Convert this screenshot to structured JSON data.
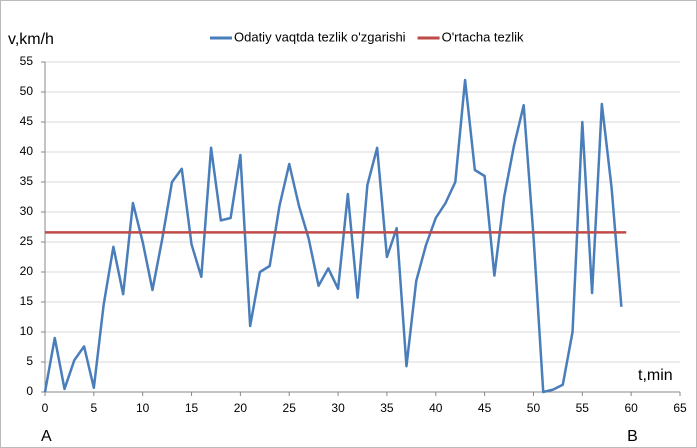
{
  "chart_data": {
    "type": "line",
    "y_label": "v,km/h",
    "x_label": "t,min",
    "x": [
      0,
      1,
      2,
      3,
      4,
      5,
      6,
      7,
      8,
      9,
      10,
      11,
      12,
      13,
      14,
      15,
      16,
      17,
      18,
      19,
      20,
      21,
      22,
      23,
      24,
      25,
      26,
      27,
      28,
      29,
      30,
      31,
      32,
      33,
      34,
      35,
      36,
      37,
      38,
      39,
      40,
      41,
      42,
      43,
      44,
      45,
      46,
      47,
      48,
      49,
      50,
      51,
      52,
      53,
      54,
      55,
      56,
      57,
      58,
      59
    ],
    "series": [
      {
        "name": "Odatiy vaqtda tezlik o'zgarishi",
        "color": "#4a7ebb",
        "values": [
          0,
          9,
          0.5,
          5.3,
          7.6,
          0.7,
          14.5,
          24.2,
          16.3,
          31.5,
          25,
          17,
          25.5,
          35,
          37.2,
          24.6,
          19.2,
          40.7,
          28.6,
          29,
          39.5,
          11,
          20,
          21,
          31,
          38,
          31,
          25.5,
          17.7,
          20.6,
          17.2,
          33,
          15.7,
          34.5,
          40.7,
          22.5,
          27.3,
          4.3,
          18.5,
          24.5,
          29,
          31.5,
          35,
          52,
          37,
          36,
          19.4,
          32.5,
          41,
          47.8,
          26,
          0,
          0.4,
          1.2,
          10,
          45,
          16.5,
          48,
          34,
          14.2
        ]
      },
      {
        "name": "O'rtacha tezlik",
        "color": "#be4b48",
        "x": [
          0,
          59.5
        ],
        "values": [
          26.6,
          26.6
        ]
      }
    ],
    "annotations": [
      {
        "text": "A",
        "x": 0
      },
      {
        "text": "B",
        "x": 60
      }
    ],
    "xlim": [
      0,
      65
    ],
    "xticks": [
      0,
      5,
      10,
      15,
      20,
      25,
      30,
      35,
      40,
      45,
      50,
      55,
      60,
      65
    ],
    "ylim": [
      0,
      55
    ],
    "yticks": [
      0,
      5,
      10,
      15,
      20,
      25,
      30,
      35,
      40,
      45,
      50,
      55
    ],
    "grid": true
  }
}
